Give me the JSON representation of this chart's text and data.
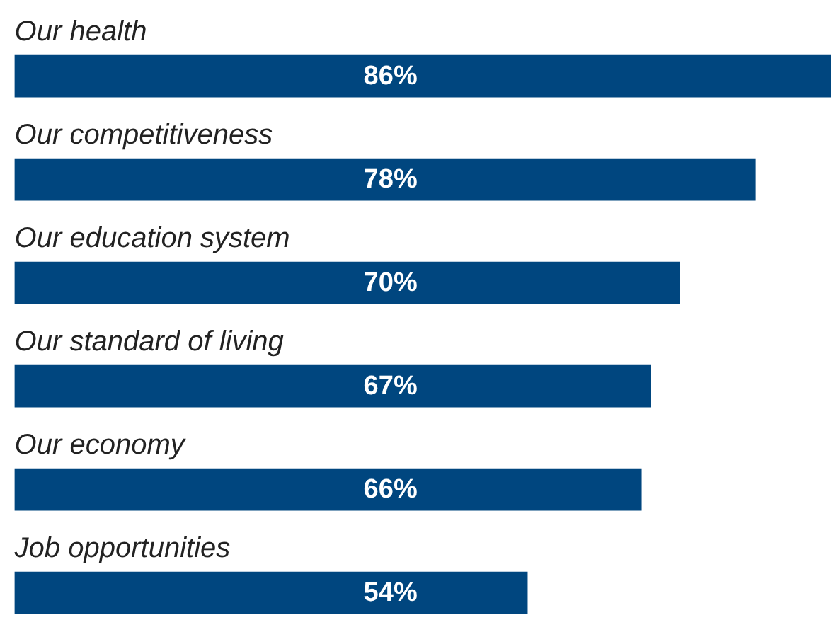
{
  "chart_data": {
    "type": "bar",
    "orientation": "horizontal",
    "categories": [
      "Our health",
      "Our competitiveness",
      "Our education system",
      "Our standard of living",
      "Our economy",
      "Job opportunities"
    ],
    "values": [
      86,
      78,
      70,
      67,
      66,
      54
    ],
    "value_labels": [
      "86%",
      "78%",
      "70%",
      "67%",
      "66%",
      "54%"
    ],
    "color": "#00467f"
  }
}
